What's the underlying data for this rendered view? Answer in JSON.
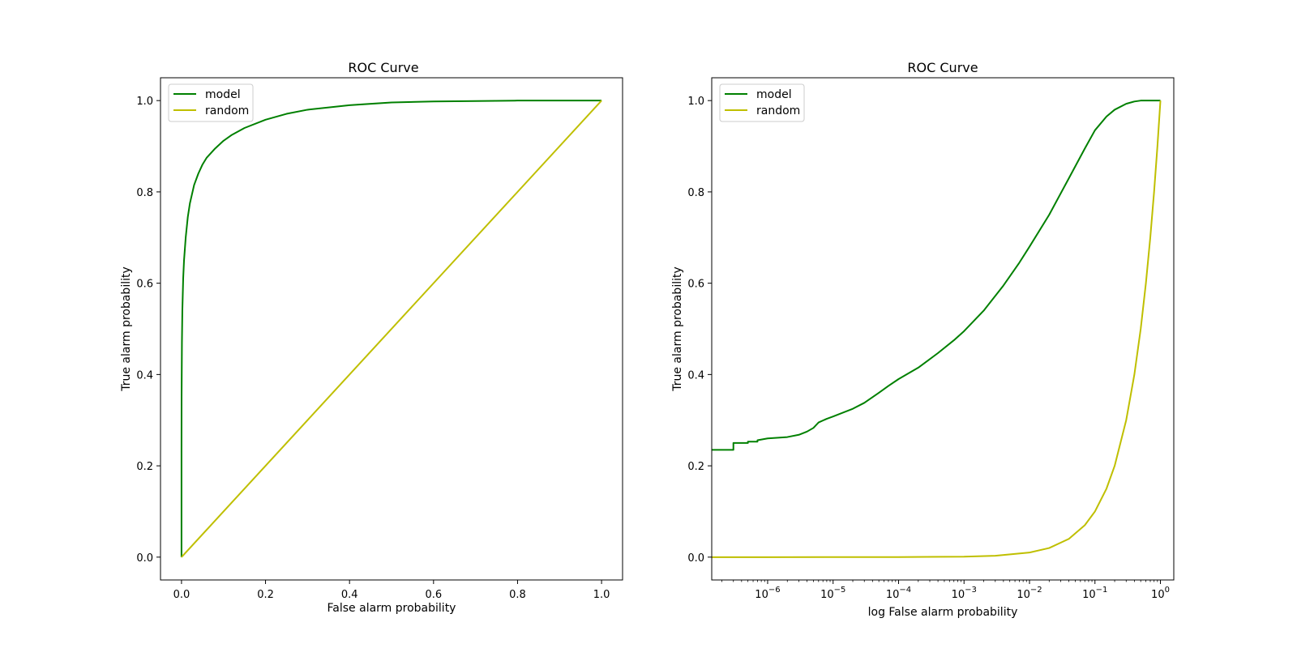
{
  "chart_data": [
    {
      "type": "line",
      "title": "ROC Curve",
      "xlabel": "False alarm probability",
      "ylabel": "True alarm probability",
      "xscale": "linear",
      "xlim": [
        -0.05,
        1.05
      ],
      "ylim": [
        -0.05,
        1.05
      ],
      "xticks": [
        0.0,
        0.2,
        0.4,
        0.6,
        0.8,
        1.0
      ],
      "xtick_labels": [
        "0.0",
        "0.2",
        "0.4",
        "0.6",
        "0.8",
        "1.0"
      ],
      "yticks": [
        0.0,
        0.2,
        0.4,
        0.6,
        0.8,
        1.0
      ],
      "ytick_labels": [
        "0.0",
        "0.2",
        "0.4",
        "0.6",
        "0.8",
        "1.0"
      ],
      "legend": "upper-left",
      "grid": false,
      "series": [
        {
          "name": "model",
          "color": "#008000",
          "x": [
            0.0,
            0.0,
            0.0002,
            0.001,
            0.002,
            0.004,
            0.006,
            0.01,
            0.015,
            0.02,
            0.03,
            0.04,
            0.05,
            0.06,
            0.08,
            0.1,
            0.12,
            0.15,
            0.2,
            0.25,
            0.3,
            0.4,
            0.5,
            0.6,
            0.7,
            0.8,
            0.9,
            1.0
          ],
          "y": [
            0.0,
            0.23,
            0.35,
            0.47,
            0.54,
            0.61,
            0.65,
            0.7,
            0.745,
            0.775,
            0.815,
            0.84,
            0.86,
            0.875,
            0.895,
            0.912,
            0.925,
            0.94,
            0.958,
            0.971,
            0.98,
            0.99,
            0.996,
            0.998,
            0.999,
            1.0,
            1.0,
            1.0
          ]
        },
        {
          "name": "random",
          "color": "#bfbf00",
          "x": [
            0.0,
            1.0
          ],
          "y": [
            0.0,
            1.0
          ]
        }
      ]
    },
    {
      "type": "line",
      "title": "ROC Curve",
      "xlabel": "log False alarm probability",
      "ylabel": "True alarm probability",
      "xscale": "log",
      "xlim": [
        1.4e-07,
        1.6
      ],
      "ylim": [
        -0.05,
        1.05
      ],
      "xticks": [
        1e-06,
        1e-05,
        0.0001,
        0.001,
        0.01,
        0.1,
        1
      ],
      "xtick_labels": [
        {
          "base": "10",
          "exp": "−6"
        },
        {
          "base": "10",
          "exp": "−5"
        },
        {
          "base": "10",
          "exp": "−4"
        },
        {
          "base": "10",
          "exp": "−3"
        },
        {
          "base": "10",
          "exp": "−2"
        },
        {
          "base": "10",
          "exp": "−1"
        },
        {
          "base": "10",
          "exp": "0"
        }
      ],
      "yticks": [
        0.0,
        0.2,
        0.4,
        0.6,
        0.8,
        1.0
      ],
      "ytick_labels": [
        "0.0",
        "0.2",
        "0.4",
        "0.6",
        "0.8",
        "1.0"
      ],
      "legend": "upper-left",
      "grid": false,
      "series": [
        {
          "name": "model",
          "color": "#008000",
          "x": [
            1.4e-07,
            3e-07,
            3e-07,
            5e-07,
            5e-07,
            7e-07,
            7e-07,
            1e-06,
            2e-06,
            3e-06,
            4e-06,
            5e-06,
            6e-06,
            8e-06,
            1e-05,
            2e-05,
            3e-05,
            5e-05,
            7e-05,
            0.0001,
            0.0002,
            0.0004,
            0.0007,
            0.001,
            0.002,
            0.004,
            0.007,
            0.01,
            0.02,
            0.04,
            0.07,
            0.1,
            0.15,
            0.2,
            0.3,
            0.4,
            0.5,
            0.6,
            0.7,
            1.0
          ],
          "y": [
            0.235,
            0.235,
            0.25,
            0.25,
            0.253,
            0.253,
            0.256,
            0.26,
            0.263,
            0.268,
            0.275,
            0.283,
            0.295,
            0.303,
            0.308,
            0.325,
            0.338,
            0.36,
            0.375,
            0.39,
            0.415,
            0.447,
            0.475,
            0.495,
            0.54,
            0.595,
            0.645,
            0.68,
            0.75,
            0.83,
            0.895,
            0.935,
            0.965,
            0.98,
            0.993,
            0.998,
            1.0,
            1.0,
            1.0,
            1.0
          ]
        },
        {
          "name": "random",
          "color": "#bfbf00",
          "x": [
            1.4e-07,
            1e-06,
            1e-05,
            0.0001,
            0.001,
            0.003,
            0.01,
            0.02,
            0.04,
            0.07,
            0.1,
            0.15,
            0.2,
            0.3,
            0.4,
            0.5,
            0.6,
            0.7,
            0.8,
            0.9,
            1.0
          ],
          "y": [
            1.4e-07,
            1e-06,
            1e-05,
            0.0001,
            0.001,
            0.003,
            0.01,
            0.02,
            0.04,
            0.07,
            0.1,
            0.15,
            0.2,
            0.3,
            0.4,
            0.5,
            0.6,
            0.7,
            0.8,
            0.9,
            1.0
          ]
        }
      ]
    }
  ]
}
